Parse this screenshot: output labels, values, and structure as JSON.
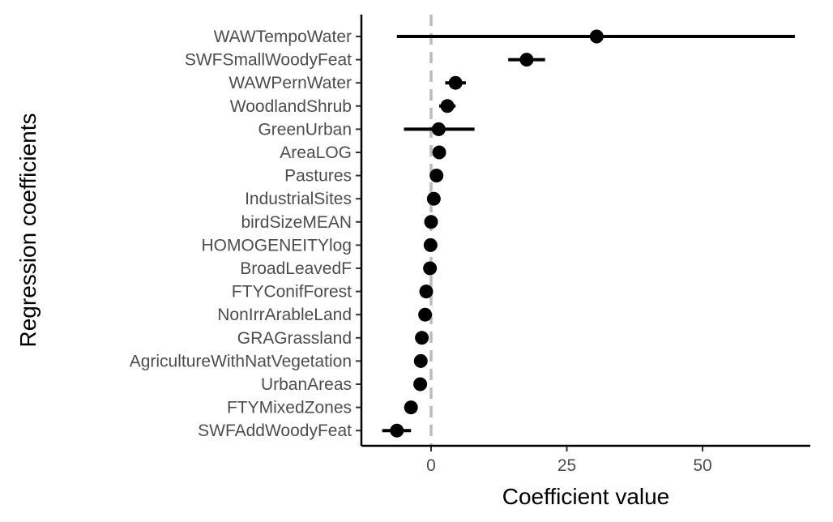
{
  "chart_data": {
    "type": "scatter",
    "subtype": "coefficient-plot-with-error-bars",
    "title": "",
    "xlabel": "Coefficient value",
    "ylabel": "Regression coefficients",
    "xlim": [
      -10.5,
      70
    ],
    "xticks": [
      0,
      25,
      50
    ],
    "xtick_labels": [
      "0",
      "25",
      "50"
    ],
    "reference_line": {
      "x": 0,
      "style": "dashed",
      "color": "#bbbbbb"
    },
    "grid": false,
    "legend": "none",
    "point_color": "#000000",
    "categories": [
      "WAWTempoWater",
      "SWFSmallWoodyFeat",
      "WAWPernWater",
      "WoodlandShrub",
      "GreenUrban",
      "AreaLOG",
      "Pastures",
      "IndustrialSites",
      "birdSizeMEAN",
      "HOMOGENEITYlog",
      "BroadLeavedF",
      "FTYConifForest",
      "NonIrrArableLand",
      "GRAGrassland",
      "AgricultureWithNatVegetation",
      "UrbanAreas",
      "FTYMixedZones",
      "SWFAddWoodyFeat"
    ],
    "estimates": [
      30.5,
      17.6,
      4.5,
      3.0,
      1.4,
      1.5,
      1.0,
      0.5,
      0.0,
      -0.1,
      -0.2,
      -0.9,
      -1.1,
      -1.7,
      -1.9,
      -2.0,
      -3.7,
      -6.3
    ],
    "lower": [
      -6.3,
      14.2,
      2.6,
      1.5,
      -5.0,
      0.8,
      0.5,
      -0.1,
      -0.4,
      -0.5,
      -0.6,
      -1.3,
      -1.5,
      -2.1,
      -2.3,
      -2.4,
      -4.3,
      -9.0
    ],
    "upper": [
      67.0,
      21.0,
      6.4,
      4.5,
      8.0,
      2.2,
      1.6,
      1.1,
      0.4,
      0.3,
      0.2,
      -0.5,
      -0.7,
      -1.3,
      -1.5,
      -1.6,
      -3.1,
      -3.7
    ]
  }
}
